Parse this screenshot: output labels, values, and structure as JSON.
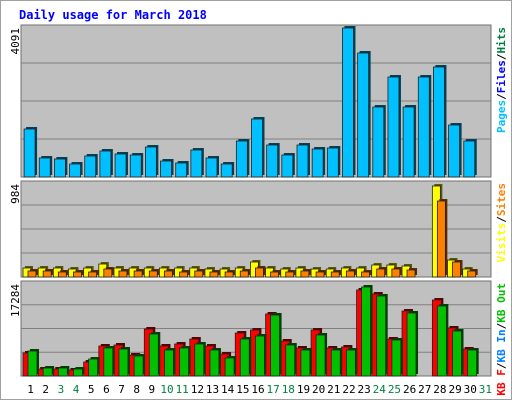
{
  "chart_data": [
    {
      "type": "bar",
      "title": "Daily usage for March 2018",
      "y_tick_label": "4091",
      "ylim": [
        0,
        4091
      ],
      "legend": [
        {
          "name": "Pages",
          "color": "#00c0ff"
        },
        {
          "name": "/",
          "color": "#000000"
        },
        {
          "name": "Files",
          "color": "#0000ff"
        },
        {
          "name": "/",
          "color": "#000000"
        },
        {
          "name": "Hits",
          "color": "#008040"
        }
      ],
      "series": [
        {
          "name": "Pages",
          "color": "#00c0ff",
          "values": [
            1320,
            520,
            500,
            350,
            580,
            720,
            620,
            600,
            830,
            450,
            380,
            750,
            520,
            350,
            1000,
            1580,
            880,
            600,
            880,
            760,
            800,
            4091,
            3400,
            1920,
            2740,
            1920,
            2740,
            3020,
            1440,
            980,
            0
          ]
        }
      ]
    },
    {
      "type": "bar",
      "y_tick_label": "984",
      "ylim": [
        0,
        984
      ],
      "legend": [
        {
          "name": "Visits",
          "color": "#ffff00"
        },
        {
          "name": "/",
          "color": "#000000"
        },
        {
          "name": "Sites",
          "color": "#ff8000"
        }
      ],
      "series": [
        {
          "name": "Visits",
          "color": "#ffff00",
          "values": [
            100,
            100,
            95,
            85,
            95,
            135,
            95,
            100,
            95,
            100,
            90,
            95,
            85,
            80,
            95,
            160,
            90,
            85,
            100,
            85,
            85,
            100,
            95,
            130,
            130,
            120,
            0,
            960,
            180,
            80,
            0
          ]
        },
        {
          "name": "Sites",
          "color": "#ff8000",
          "values": [
            60,
            60,
            55,
            50,
            55,
            85,
            60,
            65,
            60,
            60,
            55,
            60,
            55,
            50,
            60,
            90,
            55,
            50,
            60,
            50,
            50,
            60,
            55,
            80,
            80,
            75,
            0,
            800,
            160,
            60,
            0
          ]
        }
      ]
    },
    {
      "type": "bar",
      "y_tick_label": "17284",
      "ylim": [
        0,
        17284
      ],
      "legend": [
        {
          "name": "KB F",
          "color": "#ff0000"
        },
        {
          "name": "/",
          "color": "#000000"
        },
        {
          "name": "KB In",
          "color": "#0080ff"
        },
        {
          "name": "/",
          "color": "#000000"
        },
        {
          "name": "KB Out",
          "color": "#00c000"
        }
      ],
      "series": [
        {
          "name": "KB F",
          "color": "#ff0000",
          "values": [
            4400,
            1300,
            1400,
            1200,
            2700,
            5600,
            5800,
            3900,
            8800,
            5700,
            6000,
            7000,
            5600,
            4100,
            8000,
            8600,
            11700,
            6600,
            5300,
            8700,
            5300,
            5400,
            16200,
            15400,
            6900,
            12200,
            0,
            14200,
            9000,
            5100,
            0
          ]
        },
        {
          "name": "KB Out",
          "color": "#00c000",
          "values": [
            4700,
            1500,
            1500,
            1400,
            3100,
            5300,
            5000,
            3800,
            7800,
            4800,
            5200,
            6100,
            4900,
            3400,
            7000,
            7600,
            11500,
            5800,
            4800,
            7700,
            4800,
            4900,
            16800,
            15000,
            6700,
            11900,
            0,
            13200,
            8400,
            4900,
            0
          ]
        }
      ]
    }
  ],
  "x_labels": [
    {
      "label": "1",
      "color": "#000000"
    },
    {
      "label": "2",
      "color": "#000000"
    },
    {
      "label": "3",
      "color": "#008040"
    },
    {
      "label": "4",
      "color": "#008040"
    },
    {
      "label": "5",
      "color": "#000000"
    },
    {
      "label": "6",
      "color": "#000000"
    },
    {
      "label": "7",
      "color": "#000000"
    },
    {
      "label": "8",
      "color": "#000000"
    },
    {
      "label": "9",
      "color": "#000000"
    },
    {
      "label": "10",
      "color": "#008040"
    },
    {
      "label": "11",
      "color": "#008040"
    },
    {
      "label": "12",
      "color": "#000000"
    },
    {
      "label": "13",
      "color": "#000000"
    },
    {
      "label": "14",
      "color": "#000000"
    },
    {
      "label": "15",
      "color": "#000000"
    },
    {
      "label": "16",
      "color": "#000000"
    },
    {
      "label": "17",
      "color": "#008040"
    },
    {
      "label": "18",
      "color": "#008040"
    },
    {
      "label": "19",
      "color": "#000000"
    },
    {
      "label": "20",
      "color": "#000000"
    },
    {
      "label": "21",
      "color": "#000000"
    },
    {
      "label": "22",
      "color": "#000000"
    },
    {
      "label": "23",
      "color": "#000000"
    },
    {
      "label": "24",
      "color": "#008040"
    },
    {
      "label": "25",
      "color": "#008040"
    },
    {
      "label": "26",
      "color": "#000000"
    },
    {
      "label": "27",
      "color": "#000000"
    },
    {
      "label": "28",
      "color": "#000000"
    },
    {
      "label": "29",
      "color": "#000000"
    },
    {
      "label": "30",
      "color": "#000000"
    },
    {
      "label": "31",
      "color": "#008040"
    }
  ],
  "colors": {
    "background": "#ffffff",
    "panel": "#c0c0c0",
    "grid": "#808080",
    "title": "#0000ff"
  }
}
